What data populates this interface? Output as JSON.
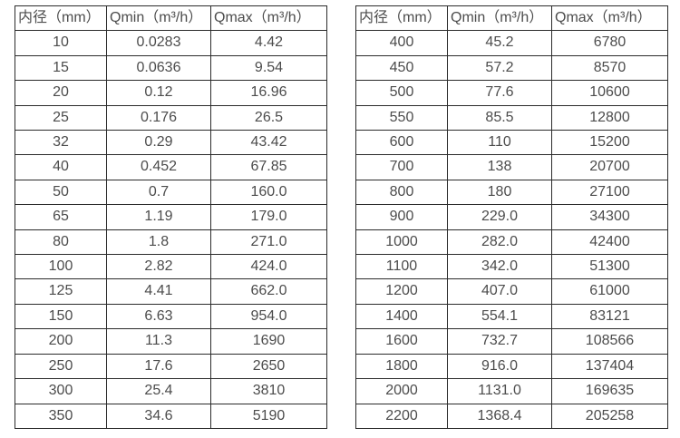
{
  "page": {
    "background_color": "#ffffff",
    "border_color": "#2b2b2b",
    "text_color": "#4c4c4c"
  },
  "chart_data": [
    {
      "type": "table",
      "title": "",
      "headers": [
        "内径（mm）",
        "Qmin（m³/h）",
        "Qmax（m³/h）"
      ],
      "rows": [
        [
          "10",
          "0.0283",
          "4.42"
        ],
        [
          "15",
          "0.0636",
          "9.54"
        ],
        [
          "20",
          "0.12",
          "16.96"
        ],
        [
          "25",
          "0.176",
          "26.5"
        ],
        [
          "32",
          "0.29",
          "43.42"
        ],
        [
          "40",
          "0.452",
          "67.85"
        ],
        [
          "50",
          "0.7",
          "160.0"
        ],
        [
          "65",
          "1.19",
          "179.0"
        ],
        [
          "80",
          "1.8",
          "271.0"
        ],
        [
          "100",
          "2.82",
          "424.0"
        ],
        [
          "125",
          "4.41",
          "662.0"
        ],
        [
          "150",
          "6.63",
          "954.0"
        ],
        [
          "200",
          "11.3",
          "1690"
        ],
        [
          "250",
          "17.6",
          "2650"
        ],
        [
          "300",
          "25.4",
          "3810"
        ],
        [
          "350",
          "34.6",
          "5190"
        ]
      ]
    },
    {
      "type": "table",
      "title": "",
      "headers": [
        "内径（mm）",
        "Qmin（m³/h）",
        "Qmax（m³/h）"
      ],
      "rows": [
        [
          "400",
          "45.2",
          "6780"
        ],
        [
          "450",
          "57.2",
          "8570"
        ],
        [
          "500",
          "77.6",
          "10600"
        ],
        [
          "550",
          "85.5",
          "12800"
        ],
        [
          "600",
          "110",
          "15200"
        ],
        [
          "700",
          "138",
          "20700"
        ],
        [
          "800",
          "180",
          "27100"
        ],
        [
          "900",
          "229.0",
          "34300"
        ],
        [
          "1000",
          "282.0",
          "42400"
        ],
        [
          "1100",
          "342.0",
          "51300"
        ],
        [
          "1200",
          "407.0",
          "61000"
        ],
        [
          "1400",
          "554.1",
          "83121"
        ],
        [
          "1600",
          "732.7",
          "108566"
        ],
        [
          "1800",
          "916.0",
          "137404"
        ],
        [
          "2000",
          "1131.0",
          "169635"
        ],
        [
          "2200",
          "1368.4",
          "205258"
        ]
      ]
    }
  ]
}
